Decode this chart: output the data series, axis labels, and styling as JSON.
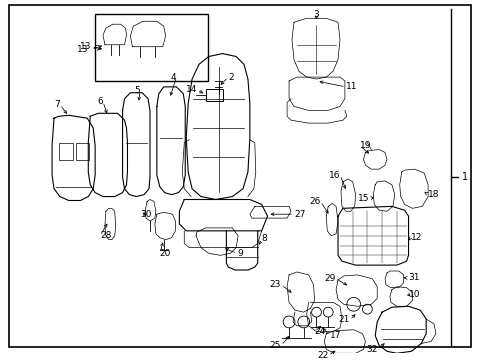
{
  "bg_color": "#ffffff",
  "border_color": "#000000",
  "lc": "#000000",
  "figsize": [
    4.89,
    3.6
  ],
  "dpi": 100
}
